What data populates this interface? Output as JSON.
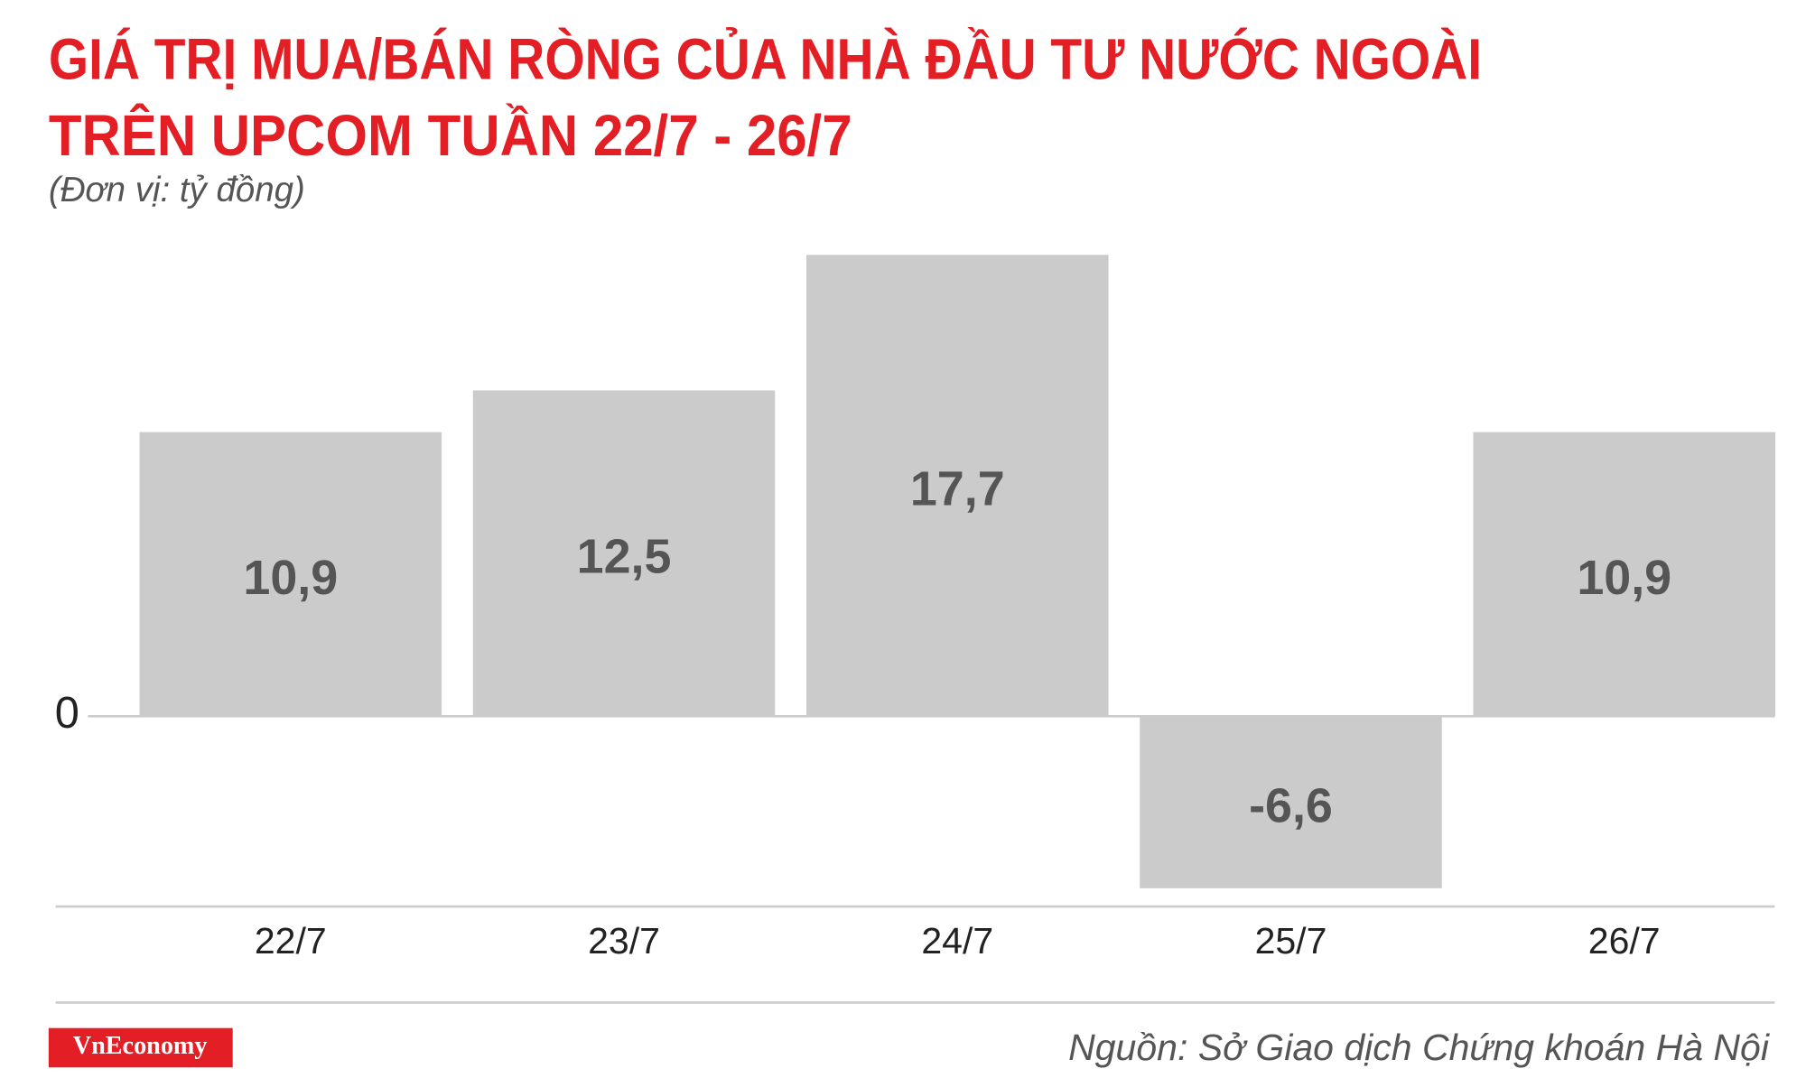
{
  "chart_data": {
    "type": "bar",
    "title": [
      "GIÁ TRỊ MUA/BÁN RÒNG CỦA NHÀ ĐẦU TƯ NƯỚC NGOÀI",
      "TRÊN UPCOM TUẦN 22/7 - 26/7"
    ],
    "subtitle": "(Đơn vị: tỷ đồng)",
    "categories": [
      "22/7",
      "23/7",
      "24/7",
      "25/7",
      "26/7"
    ],
    "values": [
      10.9,
      12.5,
      17.7,
      -6.6,
      10.9
    ],
    "value_labels": [
      "10,9",
      "12,5",
      "17,7",
      "-6,6",
      "10,9"
    ],
    "color": "#cccbcb",
    "ylim": [
      -7.3,
      17.7
    ],
    "yticks": [
      0
    ],
    "source": "Nguồn: Sở Giao dịch Chứng khoán Hà Nội",
    "brand": "VnEconomy"
  }
}
